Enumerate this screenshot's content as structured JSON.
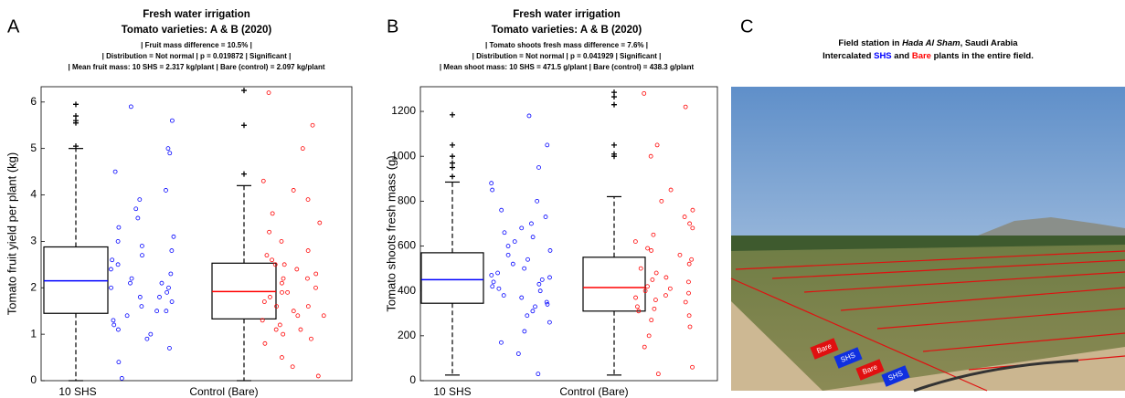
{
  "chart_data": [
    {
      "type": "box",
      "panel_label": "A",
      "title": [
        "Fresh water irrigation",
        "Tomato varieties: A & B (2020)"
      ],
      "notes": [
        "| Fruit mass difference = 10.5% |",
        "| Distribution = Not normal | p = 0.019872 | Significant |",
        "| Mean fruit mass: 10 SHS = 2.317 kg/plant | Bare (control) = 2.097 kg/plant"
      ],
      "ylabel": "Tomato fruit yield per plant (kg)",
      "categories": [
        "10 SHS",
        "Control (Bare)"
      ],
      "ylim": [
        0,
        6.33
      ],
      "yticks": [
        0,
        1,
        2,
        3,
        4,
        5,
        6
      ],
      "boxes": [
        {
          "color": "#0000ff",
          "whisker_low": 0,
          "q1": 1.45,
          "median": 2.15,
          "q3": 2.88,
          "whisker_high": 5.0,
          "outliers": [
            5.05,
            5.55,
            5.6,
            5.7,
            5.95
          ],
          "points": [
            0.4,
            0.7,
            0.9,
            1.0,
            1.1,
            1.2,
            1.3,
            1.4,
            1.5,
            1.5,
            1.6,
            1.7,
            1.8,
            1.8,
            1.9,
            2.0,
            2.1,
            2.1,
            2.2,
            2.3,
            2.4,
            2.5,
            2.6,
            2.7,
            2.8,
            2.9,
            3.0,
            3.1,
            3.3,
            3.5,
            3.7,
            3.9,
            4.1,
            4.5,
            4.9,
            5.0,
            5.6,
            5.9,
            0.05,
            2.0
          ]
        },
        {
          "color": "#ff0000",
          "whisker_low": 0,
          "q1": 1.33,
          "median": 1.92,
          "q3": 2.53,
          "whisker_high": 4.2,
          "outliers": [
            4.45,
            5.5,
            6.25
          ],
          "points": [
            0.1,
            0.5,
            0.8,
            0.9,
            1.0,
            1.1,
            1.2,
            1.3,
            1.4,
            1.4,
            1.5,
            1.6,
            1.7,
            1.8,
            1.9,
            1.9,
            2.0,
            2.1,
            2.2,
            2.3,
            2.4,
            2.5,
            2.6,
            2.7,
            2.8,
            3.0,
            3.2,
            3.4,
            3.6,
            3.9,
            4.1,
            4.3,
            5.0,
            5.5,
            6.2,
            1.6,
            2.2,
            1.1,
            2.5,
            0.3
          ]
        }
      ]
    },
    {
      "type": "box",
      "panel_label": "B",
      "title": [
        "Fresh water irrigation",
        "Tomato varieties: A & B (2020)"
      ],
      "notes": [
        "| Tomato shoots fresh mass difference = 7.6% |",
        "| Distribution = Not normal | p = 0.041929 | Significant |",
        "| Mean shoot mass: 10 SHS = 471.5 g/plant | Bare (control) = 438.3 g/plant"
      ],
      "ylabel": "Tomato shoots fresh mass (g)",
      "categories": [
        "10 SHS",
        "Control (Bare)"
      ],
      "ylim": [
        0,
        1310
      ],
      "yticks": [
        0,
        200,
        400,
        600,
        800,
        1000,
        1200
      ],
      "boxes": [
        {
          "color": "#0000ff",
          "whisker_low": 25,
          "q1": 345,
          "median": 450,
          "q3": 570,
          "whisker_high": 885,
          "outliers": [
            910,
            950,
            970,
            1000,
            1050,
            1185
          ],
          "points": [
            30,
            120,
            170,
            220,
            260,
            290,
            310,
            330,
            350,
            370,
            380,
            400,
            410,
            420,
            440,
            450,
            460,
            470,
            480,
            500,
            520,
            540,
            560,
            580,
            600,
            620,
            640,
            660,
            680,
            700,
            730,
            760,
            800,
            850,
            880,
            950,
            1050,
            1180,
            340,
            430
          ]
        },
        {
          "color": "#ff0000",
          "whisker_low": 25,
          "q1": 310,
          "median": 415,
          "q3": 550,
          "whisker_high": 820,
          "outliers": [
            1000,
            1010,
            1050,
            1230,
            1265,
            1285
          ],
          "points": [
            30,
            60,
            150,
            200,
            240,
            270,
            290,
            310,
            330,
            350,
            360,
            380,
            390,
            400,
            420,
            440,
            460,
            480,
            500,
            520,
            540,
            560,
            590,
            620,
            650,
            680,
            700,
            730,
            760,
            800,
            850,
            1000,
            1050,
            1280,
            1220,
            320,
            370,
            410,
            450,
            580
          ]
        }
      ]
    }
  ],
  "photo_panel": {
    "panel_label": "C",
    "title_line1": [
      "Field station in ",
      "Hada Al Sham",
      ", Saudi Arabia"
    ],
    "title_line2": [
      "Intercalated ",
      "SHS",
      " and ",
      "Bare",
      " plants in the entire field."
    ],
    "tags": [
      "Bare",
      "SHS",
      "Bare",
      "SHS"
    ]
  }
}
